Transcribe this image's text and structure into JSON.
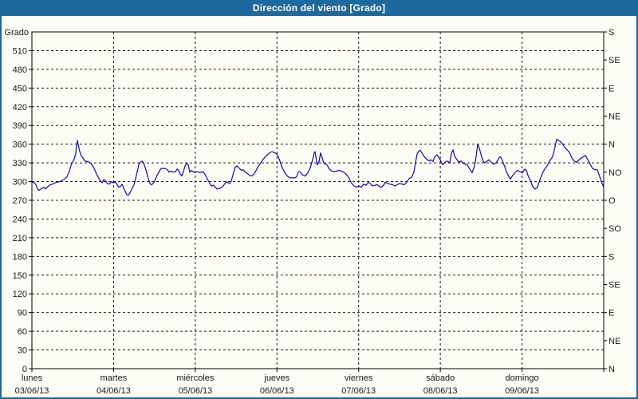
{
  "window": {
    "title": "Dirección del viento [Grado]"
  },
  "colors": {
    "titlebar_bg": "#1d699c",
    "titlebar_text": "#ffffff",
    "page_border": "#1d699c",
    "background": "#fcfdf5",
    "axis": "#000000",
    "grid": "#1a1a1a",
    "text": "#1a1a1a",
    "series_line": "#0b0bb0"
  },
  "chart_data": {
    "type": "line",
    "title": "Dirección del viento [Grado]",
    "y_axis": {
      "label": "Grado",
      "min": 0,
      "max": 540,
      "tick_step": 30,
      "unit": "degrees"
    },
    "y_axis_right": {
      "tick_step": 45,
      "labels_bottom_to_top": [
        "N",
        "NE",
        "E",
        "SE",
        "S",
        "SO",
        "O",
        "NO",
        "N",
        "NE",
        "E",
        "SE",
        "S"
      ]
    },
    "x_axis": {
      "span_days": 7,
      "days": [
        {
          "name": "lunes",
          "date": "03/06/13"
        },
        {
          "name": "martes",
          "date": "04/06/13"
        },
        {
          "name": "miércoles",
          "date": "05/06/13"
        },
        {
          "name": "jueves",
          "date": "06/06/13"
        },
        {
          "name": "viernes",
          "date": "07/06/13"
        },
        {
          "name": "sábado",
          "date": "08/06/13"
        },
        {
          "name": "domingo",
          "date": "09/06/13"
        }
      ]
    },
    "grid": {
      "horizontal": true,
      "vertical": true,
      "dash": "3,3"
    },
    "series": [
      {
        "name": "Dirección del viento",
        "color": "#0b0bb0",
        "x_unit": "1/717 of the 7-day span",
        "x_max": 717,
        "points": [
          [
            0,
            300
          ],
          [
            3,
            298
          ],
          [
            5,
            295
          ],
          [
            7,
            288
          ],
          [
            9,
            286
          ],
          [
            12,
            289
          ],
          [
            15,
            291
          ],
          [
            17,
            288
          ],
          [
            20,
            292
          ],
          [
            23,
            295
          ],
          [
            26,
            296
          ],
          [
            29,
            298
          ],
          [
            32,
            299
          ],
          [
            35,
            300
          ],
          [
            38,
            302
          ],
          [
            41,
            304
          ],
          [
            44,
            308
          ],
          [
            47,
            317
          ],
          [
            49,
            326
          ],
          [
            51,
            331
          ],
          [
            53,
            336
          ],
          [
            55,
            345
          ],
          [
            56,
            358
          ],
          [
            57,
            366
          ],
          [
            58,
            360
          ],
          [
            60,
            348
          ],
          [
            62,
            341
          ],
          [
            64,
            338
          ],
          [
            66,
            334
          ],
          [
            68,
            332
          ],
          [
            70,
            332
          ],
          [
            72,
            331
          ],
          [
            74,
            329
          ],
          [
            76,
            326
          ],
          [
            78,
            321
          ],
          [
            80,
            315
          ],
          [
            82,
            310
          ],
          [
            84,
            305
          ],
          [
            86,
            301
          ],
          [
            88,
            298
          ],
          [
            90,
            303
          ],
          [
            92,
            302
          ],
          [
            94,
            298
          ],
          [
            96,
            296
          ],
          [
            98,
            297
          ],
          [
            100,
            300
          ],
          [
            102,
            298
          ],
          [
            105,
            299
          ],
          [
            107,
            295
          ],
          [
            109,
            291
          ],
          [
            111,
            292
          ],
          [
            113,
            296
          ],
          [
            115,
            290
          ],
          [
            117,
            284
          ],
          [
            119,
            279
          ],
          [
            121,
            278
          ],
          [
            123,
            282
          ],
          [
            126,
            290
          ],
          [
            128,
            295
          ],
          [
            130,
            304
          ],
          [
            132,
            316
          ],
          [
            134,
            327
          ],
          [
            136,
            331
          ],
          [
            138,
            333
          ],
          [
            140,
            330
          ],
          [
            142,
            323
          ],
          [
            144,
            314
          ],
          [
            146,
            305
          ],
          [
            148,
            297
          ],
          [
            150,
            295
          ],
          [
            152,
            297
          ],
          [
            154,
            301
          ],
          [
            157,
            310
          ],
          [
            160,
            317
          ],
          [
            162,
            321
          ],
          [
            165,
            321
          ],
          [
            167,
            321
          ],
          [
            170,
            319
          ],
          [
            172,
            315
          ],
          [
            174,
            317
          ],
          [
            177,
            315
          ],
          [
            180,
            316
          ],
          [
            182,
            320
          ],
          [
            184,
            318
          ],
          [
            186,
            312
          ],
          [
            188,
            309
          ],
          [
            190,
            316
          ],
          [
            192,
            325
          ],
          [
            194,
            329
          ],
          [
            196,
            327
          ],
          [
            198,
            315
          ],
          [
            200,
            318
          ],
          [
            202,
            316
          ],
          [
            204,
            315
          ],
          [
            205,
            315
          ],
          [
            208,
            316
          ],
          [
            211,
            314
          ],
          [
            214,
            316
          ],
          [
            217,
            312
          ],
          [
            220,
            304
          ],
          [
            223,
            297
          ],
          [
            225,
            293
          ],
          [
            228,
            294
          ],
          [
            230,
            291
          ],
          [
            232,
            288
          ],
          [
            235,
            289
          ],
          [
            238,
            291
          ],
          [
            240,
            293
          ],
          [
            242,
            297
          ],
          [
            244,
            300
          ],
          [
            246,
            298
          ],
          [
            248,
            297
          ],
          [
            250,
            301
          ],
          [
            253,
            315
          ],
          [
            255,
            323
          ],
          [
            257,
            325
          ],
          [
            259,
            323
          ],
          [
            261,
            320
          ],
          [
            263,
            318
          ],
          [
            265,
            319
          ],
          [
            267,
            316
          ],
          [
            270,
            313
          ],
          [
            273,
            310
          ],
          [
            275,
            309
          ],
          [
            277,
            310
          ],
          [
            280,
            315
          ],
          [
            283,
            323
          ],
          [
            287,
            330
          ],
          [
            290,
            336
          ],
          [
            293,
            340
          ],
          [
            296,
            344
          ],
          [
            299,
            347
          ],
          [
            301,
            348
          ],
          [
            303,
            347
          ],
          [
            305,
            346
          ],
          [
            307,
            344
          ],
          [
            309,
            340
          ],
          [
            311,
            333
          ],
          [
            313,
            325
          ],
          [
            316,
            317
          ],
          [
            319,
            311
          ],
          [
            321,
            308
          ],
          [
            324,
            306
          ],
          [
            327,
            306
          ],
          [
            330,
            306
          ],
          [
            332,
            308
          ],
          [
            334,
            315
          ],
          [
            336,
            316
          ],
          [
            338,
            313
          ],
          [
            340,
            310
          ],
          [
            343,
            309
          ],
          [
            346,
            314
          ],
          [
            349,
            322
          ],
          [
            352,
            335
          ],
          [
            354,
            346
          ],
          [
            355,
            348
          ],
          [
            357,
            333
          ],
          [
            358,
            327
          ],
          [
            360,
            332
          ],
          [
            362,
            346
          ],
          [
            364,
            338
          ],
          [
            366,
            330
          ],
          [
            368,
            328
          ],
          [
            370,
            327
          ],
          [
            373,
            320
          ],
          [
            376,
            317
          ],
          [
            379,
            316
          ],
          [
            382,
            317
          ],
          [
            385,
            318
          ],
          [
            388,
            317
          ],
          [
            391,
            315
          ],
          [
            394,
            312
          ],
          [
            397,
            307
          ],
          [
            399,
            302
          ],
          [
            401,
            297
          ],
          [
            404,
            293
          ],
          [
            407,
            291
          ],
          [
            410,
            293
          ],
          [
            413,
            291
          ],
          [
            416,
            296
          ],
          [
            419,
            294
          ],
          [
            422,
            299
          ],
          [
            425,
            296
          ],
          [
            427,
            293
          ],
          [
            430,
            294
          ],
          [
            433,
            295
          ],
          [
            436,
            292
          ],
          [
            438,
            291
          ],
          [
            441,
            294
          ],
          [
            443,
            299
          ],
          [
            446,
            297
          ],
          [
            449,
            296
          ],
          [
            452,
            295
          ],
          [
            455,
            293
          ],
          [
            458,
            295
          ],
          [
            461,
            297
          ],
          [
            464,
            296
          ],
          [
            467,
            295
          ],
          [
            470,
            299
          ],
          [
            473,
            305
          ],
          [
            476,
            307
          ],
          [
            479,
            315
          ],
          [
            481,
            330
          ],
          [
            483,
            344
          ],
          [
            485,
            349
          ],
          [
            487,
            350
          ],
          [
            489,
            346
          ],
          [
            492,
            340
          ],
          [
            495,
            336
          ],
          [
            498,
            333
          ],
          [
            500,
            335
          ],
          [
            503,
            332
          ],
          [
            505,
            340
          ],
          [
            508,
            343
          ],
          [
            510,
            339
          ],
          [
            512,
            335
          ],
          [
            515,
            327
          ],
          [
            518,
            331
          ],
          [
            521,
            333
          ],
          [
            524,
            330
          ],
          [
            526,
            345
          ],
          [
            528,
            351
          ],
          [
            530,
            341
          ],
          [
            532,
            337
          ],
          [
            535,
            331
          ],
          [
            538,
            333
          ],
          [
            540,
            330
          ],
          [
            543,
            328
          ],
          [
            546,
            327
          ],
          [
            549,
            320
          ],
          [
            552,
            314
          ],
          [
            555,
            325
          ],
          [
            557,
            340
          ],
          [
            559,
            360
          ],
          [
            561,
            354
          ],
          [
            563,
            344
          ],
          [
            565,
            336
          ],
          [
            567,
            330
          ],
          [
            570,
            332
          ],
          [
            573,
            335
          ],
          [
            576,
            331
          ],
          [
            579,
            328
          ],
          [
            582,
            330
          ],
          [
            585,
            336
          ],
          [
            587,
            340
          ],
          [
            589,
            337
          ],
          [
            592,
            327
          ],
          [
            595,
            316
          ],
          [
            598,
            308
          ],
          [
            600,
            304
          ],
          [
            603,
            310
          ],
          [
            606,
            315
          ],
          [
            609,
            318
          ],
          [
            612,
            316
          ],
          [
            615,
            314
          ],
          [
            618,
            320
          ],
          [
            620,
            318
          ],
          [
            622,
            310
          ],
          [
            625,
            302
          ],
          [
            628,
            292
          ],
          [
            631,
            288
          ],
          [
            634,
            291
          ],
          [
            637,
            303
          ],
          [
            640,
            313
          ],
          [
            643,
            320
          ],
          [
            646,
            325
          ],
          [
            649,
            333
          ],
          [
            652,
            338
          ],
          [
            654,
            345
          ],
          [
            656,
            356
          ],
          [
            658,
            368
          ],
          [
            660,
            366
          ],
          [
            662,
            365
          ],
          [
            665,
            361
          ],
          [
            668,
            355
          ],
          [
            671,
            351
          ],
          [
            674,
            347
          ],
          [
            677,
            338
          ],
          [
            680,
            333
          ],
          [
            683,
            331
          ],
          [
            686,
            335
          ],
          [
            689,
            338
          ],
          [
            692,
            340
          ],
          [
            694,
            342
          ],
          [
            697,
            335
          ],
          [
            700,
            328
          ],
          [
            703,
            321
          ],
          [
            706,
            319
          ],
          [
            709,
            319
          ],
          [
            712,
            308
          ],
          [
            714,
            300
          ],
          [
            717,
            291
          ]
        ]
      }
    ]
  }
}
